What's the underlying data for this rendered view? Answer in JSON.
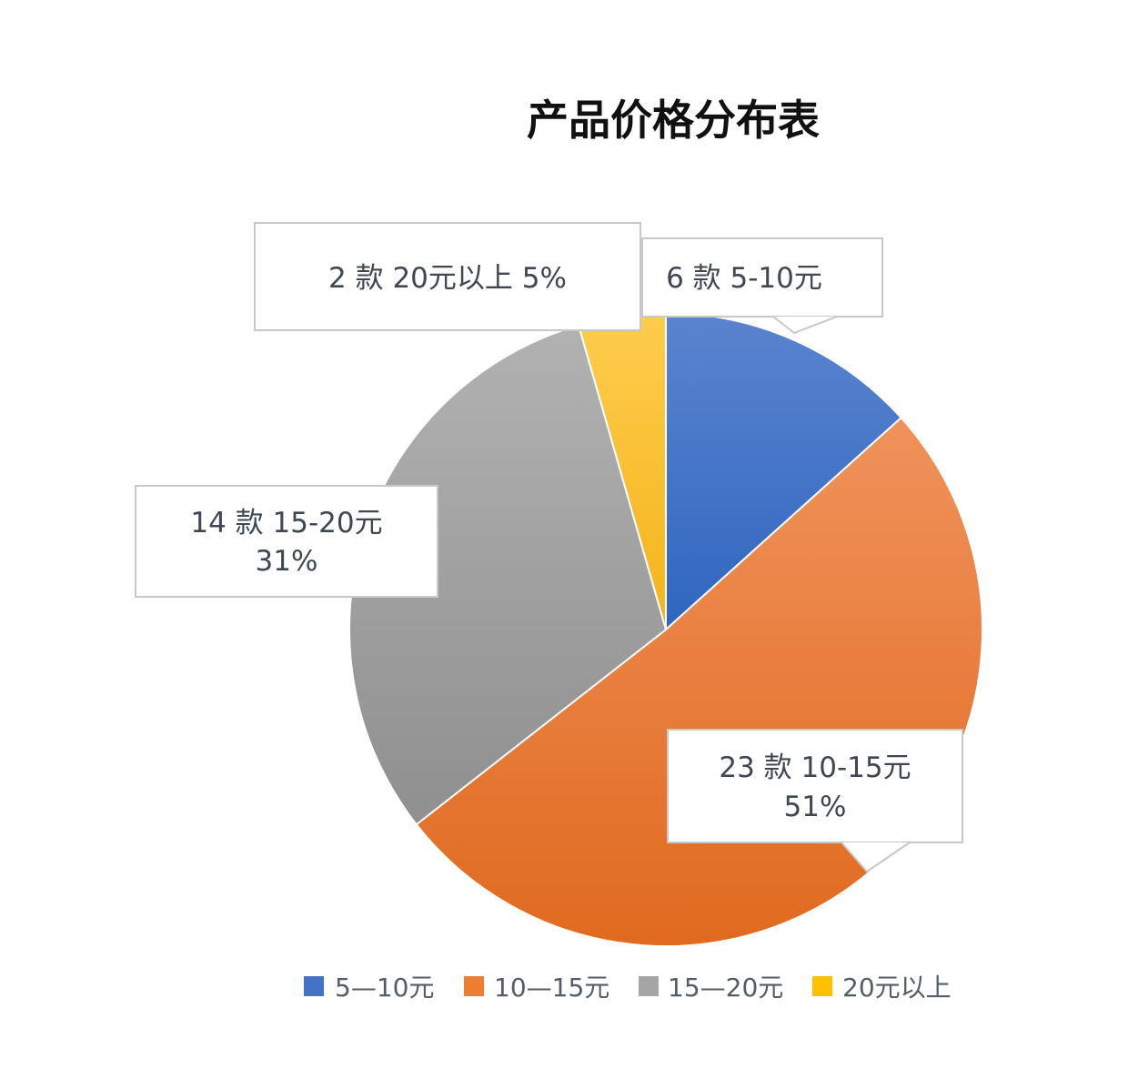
{
  "chart_data": {
    "type": "pie",
    "title": "产品价格分布表",
    "categories": [
      "5-10元",
      "10-15元",
      "15-20元",
      "20元以上"
    ],
    "values": [
      6,
      23,
      14,
      2
    ],
    "percentages": [
      "13%",
      "51%",
      "31%",
      "5%"
    ],
    "data_labels": [
      [
        "6 款 5-10元"
      ],
      [
        "23 款 10-15元",
        "51%"
      ],
      [
        "14 款 15-20元",
        "31%"
      ],
      [
        "2 款 20元以上 5%"
      ]
    ],
    "colors": [
      "#4472c4",
      "#ed7d31",
      "#a5a5a5",
      "#ffc000"
    ],
    "legend": {
      "position": "bottom",
      "entries": [
        "5—10元",
        "10—15元",
        "15—20元",
        "20元以上"
      ]
    }
  }
}
